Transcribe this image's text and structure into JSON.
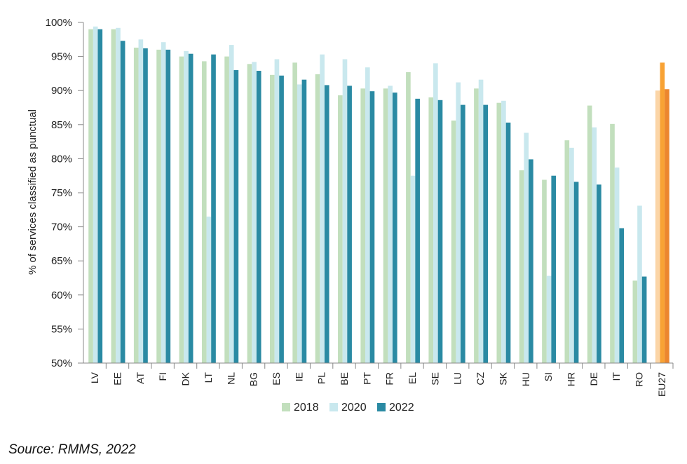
{
  "chart_data": {
    "type": "bar",
    "ylabel": "% of services classified as punctual",
    "ylim": [
      50,
      100
    ],
    "yticks": [
      "50%",
      "55%",
      "60%",
      "65%",
      "70%",
      "75%",
      "80%",
      "85%",
      "90%",
      "95%",
      "100%"
    ],
    "grid": false,
    "legend_position": "bottom",
    "categories": [
      "LV",
      "EE",
      "AT",
      "FI",
      "DK",
      "LT",
      "NL",
      "BG",
      "ES",
      "IE",
      "PL",
      "BE",
      "PT",
      "FR",
      "EL",
      "SE",
      "LU",
      "CZ",
      "SK",
      "HU",
      "SI",
      "HR",
      "DE",
      "IT",
      "RO",
      "EU27"
    ],
    "series": [
      {
        "name": "2018",
        "color": "#c2dfbd",
        "values": [
          99.0,
          99.0,
          96.3,
          96.0,
          95.0,
          94.3,
          95.0,
          93.9,
          92.3,
          94.1,
          92.4,
          89.3,
          90.3,
          90.3,
          92.7,
          89.0,
          85.6,
          90.3,
          88.2,
          78.3,
          76.9,
          82.7,
          87.8,
          85.1,
          62.1,
          90.0
        ]
      },
      {
        "name": "2020",
        "color": "#c9e8ee",
        "values": [
          99.4,
          99.2,
          97.5,
          97.1,
          95.8,
          71.5,
          96.7,
          94.2,
          94.6,
          90.9,
          95.3,
          94.6,
          93.4,
          90.7,
          77.5,
          94.0,
          91.2,
          91.6,
          88.5,
          83.8,
          62.8,
          81.6,
          84.6,
          78.7,
          73.1,
          94.1
        ]
      },
      {
        "name": "2022",
        "color": "#2a8aa3",
        "values": [
          99.0,
          97.3,
          96.2,
          96.0,
          95.4,
          95.3,
          93.0,
          92.9,
          92.2,
          91.6,
          90.8,
          90.7,
          89.9,
          89.7,
          88.8,
          88.6,
          87.9,
          87.9,
          85.3,
          79.9,
          77.5,
          76.6,
          76.2,
          69.8,
          62.7,
          90.2
        ]
      }
    ],
    "highlight": {
      "category": "EU27",
      "colors": [
        "#fbd5a7",
        "#f8a234",
        "#ec862e"
      ]
    }
  },
  "source": "Source: RMMS, 2022"
}
